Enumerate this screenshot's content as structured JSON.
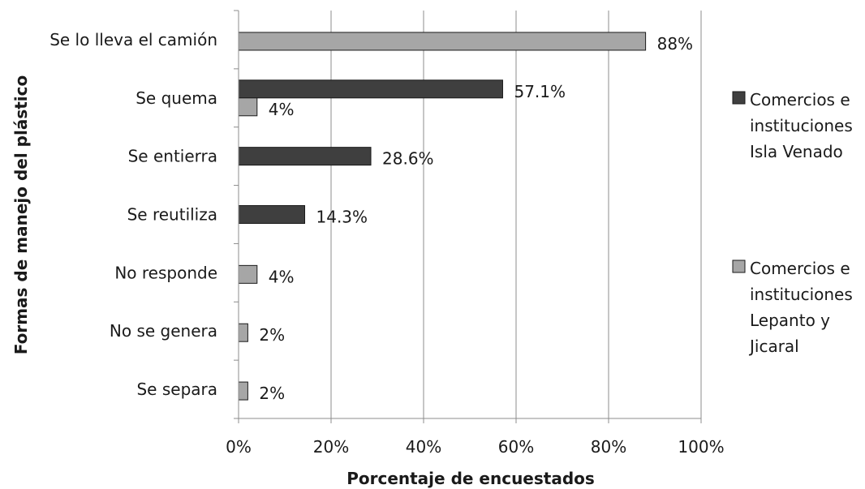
{
  "chart_data": {
    "type": "bar",
    "orientation": "horizontal",
    "categories": [
      "Se lo lleva el camión",
      "Se quema",
      "Se entierra",
      "Se reutiliza",
      "No responde",
      "No se genera",
      "Se separa"
    ],
    "series": [
      {
        "name": "Comercios e instituciones Isla Venado",
        "name_lines": [
          "Comercios e",
          "instituciones",
          "Isla Venado"
        ],
        "color": "#3f3f3f",
        "values": [
          null,
          57.1,
          28.6,
          14.3,
          null,
          null,
          null
        ],
        "labels": [
          "",
          "57.1%",
          "28.6%",
          "14.3%",
          "",
          "",
          ""
        ]
      },
      {
        "name": "Comercios e instituciones Lepanto y Jicaral",
        "name_lines": [
          "Comercios e",
          "instituciones",
          "Lepanto y",
          "Jicaral"
        ],
        "color": "#a6a6a6",
        "values": [
          88,
          4,
          null,
          null,
          4,
          2,
          2
        ],
        "labels": [
          "88%",
          "4%",
          "",
          "",
          "4%",
          "2%",
          "2%"
        ]
      }
    ],
    "xlabel": "Porcentaje de encuestados",
    "ylabel": "Formas de manejo del plástico",
    "xlim": [
      0,
      100
    ],
    "xticks": [
      0,
      20,
      40,
      60,
      80,
      100
    ],
    "xtick_labels": [
      "0%",
      "20%",
      "40%",
      "60%",
      "80%",
      "100%"
    ],
    "grid": true,
    "legend": "right"
  }
}
